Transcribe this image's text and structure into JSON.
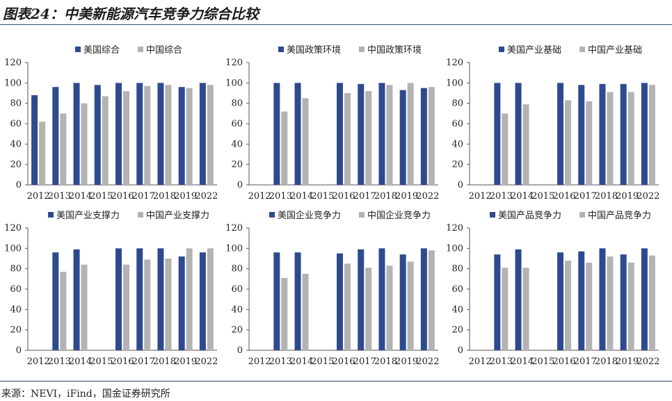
{
  "page": {
    "title": "图表24：中美新能源汽车竞争力综合比较",
    "source": "来源：NEVI，iFind，国金证券研究所"
  },
  "colors": {
    "us": "#2e4a8f",
    "china": "#b3b3b3",
    "axis": "#555555",
    "text": "#222222"
  },
  "chart_data": [
    {
      "type": "bar",
      "categories": [
        "2012",
        "2013",
        "2014",
        "2015",
        "2016",
        "2017",
        "2018",
        "2019",
        "2022"
      ],
      "series": [
        {
          "name": "美国综合",
          "values": [
            88,
            96,
            100,
            98,
            100,
            100,
            100,
            96,
            100
          ]
        },
        {
          "name": "中国综合",
          "values": [
            62,
            70,
            80,
            87,
            92,
            97,
            98,
            95,
            98
          ]
        }
      ],
      "yticks": [
        0,
        20,
        40,
        60,
        80,
        100,
        120
      ],
      "ylim": [
        0,
        120
      ],
      "legend": "top"
    },
    {
      "type": "bar",
      "categories": [
        "2012",
        "2013",
        "2014",
        "2015",
        "2016",
        "2017",
        "2018",
        "2019",
        "2022"
      ],
      "series": [
        {
          "name": "美国政策环境",
          "values": [
            null,
            100,
            100,
            null,
            100,
            99,
            100,
            93,
            95
          ]
        },
        {
          "name": "中国政策环境",
          "values": [
            null,
            72,
            85,
            null,
            90,
            92,
            98,
            100,
            96
          ]
        }
      ],
      "yticks": [
        0,
        20,
        40,
        60,
        80,
        100,
        120
      ],
      "ylim": [
        0,
        120
      ],
      "legend": "top"
    },
    {
      "type": "bar",
      "categories": [
        "2012",
        "2013",
        "2014",
        "2015",
        "2016",
        "2017",
        "2018",
        "2019",
        "2022"
      ],
      "series": [
        {
          "name": "美国产业基础",
          "values": [
            null,
            100,
            100,
            null,
            100,
            98,
            99,
            99,
            100
          ]
        },
        {
          "name": "中国产业基础",
          "values": [
            null,
            70,
            79,
            null,
            83,
            82,
            91,
            91,
            98
          ]
        }
      ],
      "yticks": [
        0,
        20,
        40,
        60,
        80,
        100,
        120
      ],
      "ylim": [
        0,
        120
      ],
      "legend": "top"
    },
    {
      "type": "bar",
      "categories": [
        "2012",
        "2013",
        "2014",
        "2015",
        "2016",
        "2017",
        "2018",
        "2019",
        "2022"
      ],
      "series": [
        {
          "name": "美国产业支撑力",
          "values": [
            null,
            96,
            99,
            null,
            100,
            100,
            100,
            92,
            96
          ]
        },
        {
          "name": "中国产业支撑力",
          "values": [
            null,
            77,
            84,
            null,
            84,
            89,
            90,
            100,
            100
          ]
        }
      ],
      "yticks": [
        0,
        20,
        40,
        60,
        80,
        100,
        120
      ],
      "ylim": [
        0,
        120
      ],
      "legend": "top"
    },
    {
      "type": "bar",
      "categories": [
        "2012",
        "2013",
        "2014",
        "2015",
        "2016",
        "2017",
        "2018",
        "2019",
        "2022"
      ],
      "series": [
        {
          "name": "美国企业竞争力",
          "values": [
            null,
            96,
            96,
            null,
            95,
            99,
            100,
            94,
            100
          ]
        },
        {
          "name": "中国企业竞争力",
          "values": [
            null,
            71,
            75,
            null,
            85,
            81,
            83,
            87,
            98
          ]
        }
      ],
      "yticks": [
        0,
        20,
        40,
        60,
        80,
        100,
        120
      ],
      "ylim": [
        0,
        120
      ],
      "legend": "top"
    },
    {
      "type": "bar",
      "categories": [
        "2012",
        "2013",
        "2014",
        "2015",
        "2016",
        "2017",
        "2018",
        "2019",
        "2022"
      ],
      "series": [
        {
          "name": "美国产品竞争力",
          "values": [
            null,
            94,
            99,
            null,
            96,
            97,
            100,
            94,
            100
          ]
        },
        {
          "name": "中国产品竞争力",
          "values": [
            null,
            81,
            81,
            null,
            88,
            86,
            92,
            86,
            93
          ]
        }
      ],
      "yticks": [
        0,
        20,
        40,
        60,
        80,
        100,
        120
      ],
      "ylim": [
        0,
        120
      ],
      "legend": "top"
    }
  ]
}
